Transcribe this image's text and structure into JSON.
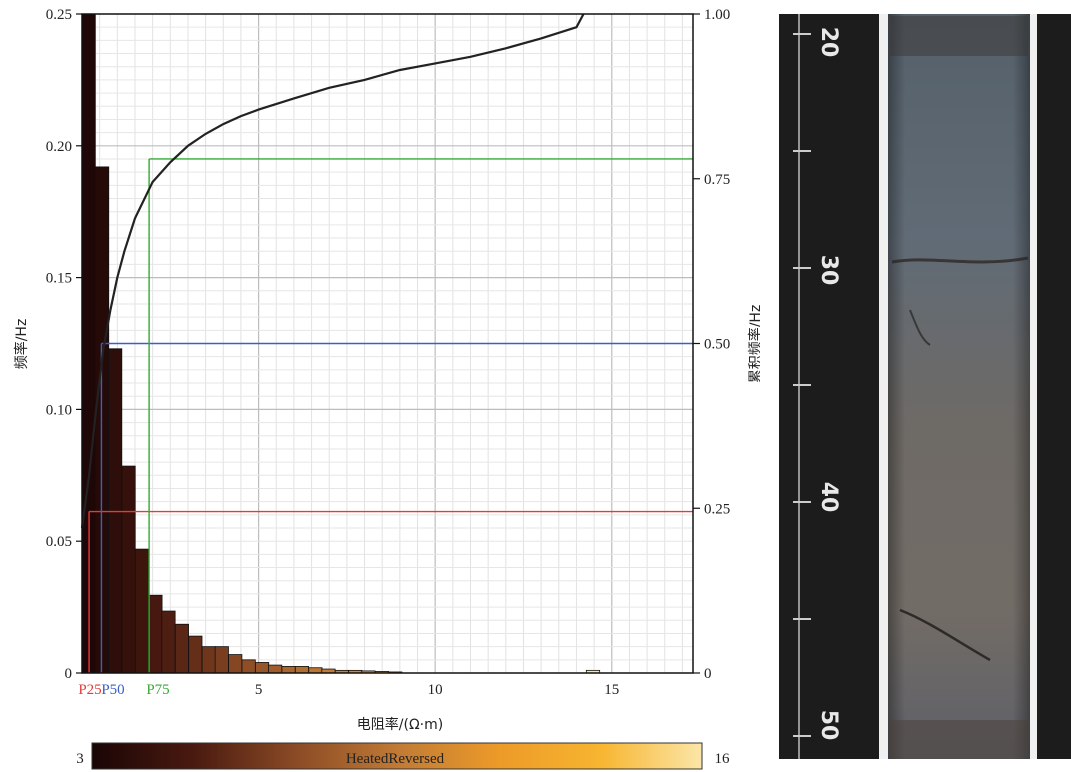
{
  "chart_data": {
    "type": "bar",
    "xlabel": "电阻率/(Ω·m)",
    "ylabel": "频率/Hz",
    "y2label": "累积频率/Hz",
    "xlim": [
      0,
      17.3
    ],
    "ylim": [
      0,
      0.25
    ],
    "y2lim": [
      0,
      1.0
    ],
    "x_ticks": [
      5,
      10,
      15
    ],
    "y_ticks": [
      "0",
      "0.05",
      "0.10",
      "0.15",
      "0.20",
      "0.25"
    ],
    "y_tick_values": [
      0,
      0.05,
      0.1,
      0.15,
      0.2,
      0.25
    ],
    "y2_ticks": [
      "0",
      "0.25",
      "0.50",
      "0.75",
      "1.00"
    ],
    "y2_tick_values": [
      0,
      0.25,
      0.5,
      0.75,
      1.0
    ],
    "grid": true,
    "bin_width": 0.3773,
    "bars": {
      "x_start": [
        0.0,
        0.38,
        0.75,
        1.13,
        1.51,
        1.89,
        2.26,
        2.64,
        3.02,
        3.4,
        3.77,
        4.15,
        4.53,
        4.91,
        5.28,
        5.66,
        6.04,
        6.42,
        6.79,
        7.17,
        7.55,
        7.92,
        8.3,
        8.68,
        14.28
      ],
      "frequency": [
        0.25,
        0.192,
        0.123,
        0.0785,
        0.047,
        0.0295,
        0.0235,
        0.0185,
        0.014,
        0.01,
        0.01,
        0.007,
        0.005,
        0.004,
        0.003,
        0.0025,
        0.0025,
        0.002,
        0.0015,
        0.001,
        0.001,
        0.0008,
        0.0006,
        0.0004,
        0.001
      ]
    },
    "cumulative_curve": {
      "x": [
        0,
        0.2,
        0.4,
        0.6,
        0.8,
        1.0,
        1.2,
        1.5,
        2.0,
        2.5,
        3.0,
        3.5,
        4.0,
        4.5,
        5.0,
        6.0,
        7.0,
        8.0,
        9.0,
        10.0,
        11.0,
        12.0,
        13.0,
        14.0,
        14.2
      ],
      "y": [
        0.22,
        0.3,
        0.4,
        0.49,
        0.55,
        0.6,
        0.64,
        0.69,
        0.745,
        0.775,
        0.8,
        0.818,
        0.833,
        0.845,
        0.855,
        0.872,
        0.888,
        0.9,
        0.915,
        0.925,
        0.935,
        0.948,
        0.963,
        0.98,
        1.0
      ]
    },
    "percentiles": [
      {
        "label": "P25",
        "x": 0.2,
        "cum": 0.245,
        "color": "#e23b3b"
      },
      {
        "label": "P50",
        "x": 0.55,
        "cum": 0.5,
        "color": "#3b5fc4"
      },
      {
        "label": "P75",
        "x": 1.9,
        "cum": 0.78,
        "color": "#33aa33"
      }
    ],
    "colorbar": {
      "min_label": "3",
      "max_label": "16",
      "name": "HeatedReversed",
      "stops": [
        "#1a0505",
        "#4a1a10",
        "#8a4a25",
        "#c07a35",
        "#ec9a28",
        "#f7b530",
        "#fbe6a8"
      ]
    }
  },
  "core_image": {
    "depth_labels": [
      "20",
      "30",
      "40",
      "50"
    ]
  }
}
